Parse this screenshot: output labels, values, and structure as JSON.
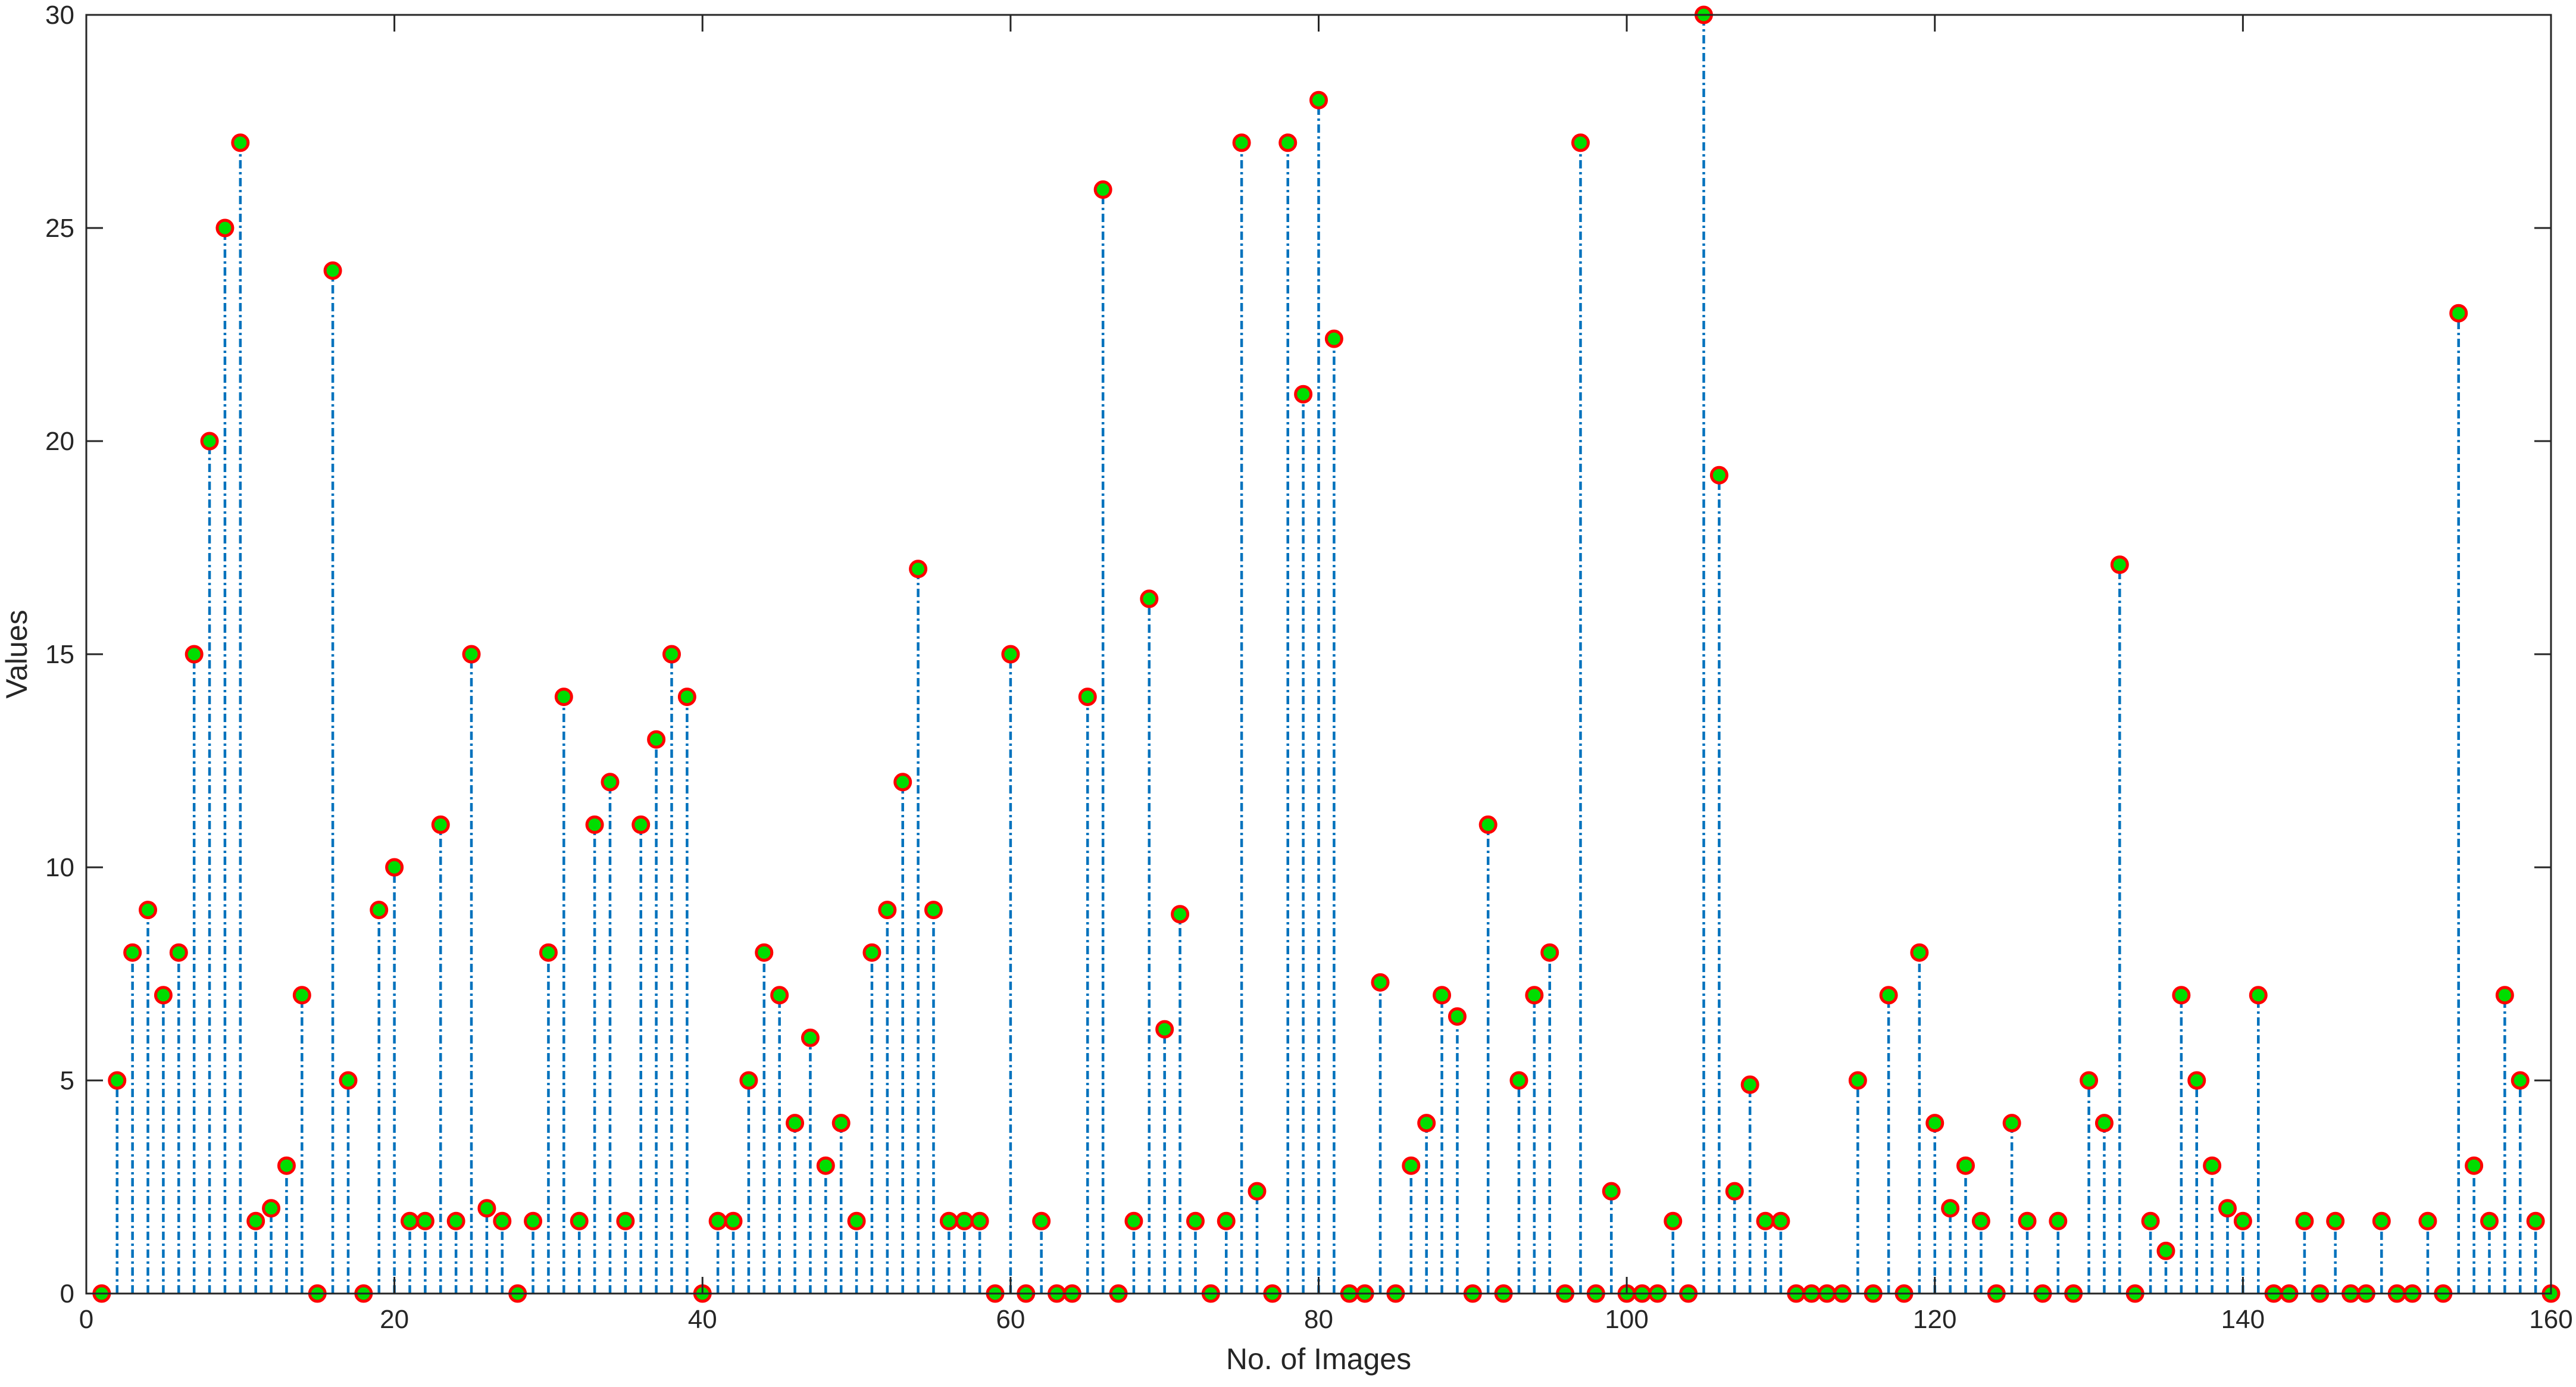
{
  "chart_data": {
    "type": "stem",
    "xlabel": "No. of Images",
    "ylabel": "Values",
    "xlim": [
      0,
      160
    ],
    "ylim": [
      0,
      30
    ],
    "xticks": [
      0,
      20,
      40,
      60,
      80,
      100,
      120,
      140,
      160
    ],
    "yticks": [
      0,
      5,
      10,
      15,
      20,
      25,
      30
    ],
    "grid": false,
    "box": true,
    "stem_color": "#0072BD",
    "marker_fill": "#00DD00",
    "marker_edge": "#FF0000",
    "axis_color": "#262626",
    "x": [
      1,
      2,
      3,
      4,
      5,
      6,
      7,
      8,
      9,
      10,
      11,
      12,
      13,
      14,
      15,
      16,
      17,
      18,
      19,
      20,
      21,
      22,
      23,
      24,
      25,
      26,
      27,
      28,
      29,
      30,
      31,
      32,
      33,
      34,
      35,
      36,
      37,
      38,
      39,
      40,
      41,
      42,
      43,
      44,
      45,
      46,
      47,
      48,
      49,
      50,
      51,
      52,
      53,
      54,
      55,
      56,
      57,
      58,
      59,
      60,
      61,
      62,
      63,
      64,
      65,
      66,
      67,
      68,
      69,
      70,
      71,
      72,
      73,
      74,
      75,
      76,
      77,
      78,
      79,
      80,
      81,
      82,
      83,
      84,
      85,
      86,
      87,
      88,
      89,
      90,
      91,
      92,
      93,
      94,
      95,
      96,
      97,
      98,
      99,
      100,
      101,
      102,
      103,
      104,
      105,
      106,
      107,
      108,
      109,
      110,
      111,
      112,
      113,
      114,
      115,
      116,
      117,
      118,
      119,
      120,
      121,
      122,
      123,
      124,
      125,
      126,
      127,
      128,
      129,
      130,
      131,
      132,
      133,
      134,
      135,
      136,
      137,
      138,
      139,
      140,
      141,
      142,
      143,
      144,
      145,
      146,
      147,
      148,
      149,
      150,
      151,
      152,
      153,
      154,
      155,
      156,
      157,
      158,
      159,
      160
    ],
    "values": [
      0,
      5,
      8,
      9,
      7,
      8,
      15,
      20,
      25,
      27,
      1.7,
      2,
      3,
      7,
      0,
      24,
      5,
      0,
      9,
      10,
      1.7,
      1.7,
      11,
      1.7,
      15,
      2,
      1.7,
      0,
      1.7,
      8,
      14,
      1.7,
      11,
      12,
      1.7,
      11,
      13,
      15,
      14,
      0,
      1.7,
      1.7,
      5,
      8,
      7,
      4,
      6,
      3,
      4,
      1.7,
      8,
      9,
      12,
      17,
      9,
      1.7,
      1.7,
      1.7,
      0,
      15,
      0,
      1.7,
      0,
      0,
      14,
      25.9,
      0,
      1.7,
      16.3,
      6.2,
      8.9,
      1.7,
      0,
      1.7,
      27,
      2.4,
      0,
      27,
      21.1,
      28,
      22.4,
      0,
      0,
      7.3,
      0,
      3,
      4,
      7,
      6.5,
      0,
      11,
      0,
      5,
      7,
      8,
      0,
      27,
      0,
      2.4,
      0,
      0,
      0,
      1.7,
      0,
      30,
      19.2,
      2.4,
      4.9,
      1.7,
      1.7,
      0,
      0,
      0,
      0,
      5,
      0,
      7,
      0,
      8,
      4,
      2,
      3,
      1.7,
      0,
      4,
      1.7,
      0,
      1.7,
      0,
      5,
      4,
      17.1,
      0,
      1.7,
      1,
      7,
      5,
      3,
      2,
      1.7,
      7,
      0,
      0,
      1.7,
      0,
      1.7,
      0,
      0,
      1.7,
      0,
      0,
      1.7,
      0,
      23,
      3,
      1.7,
      7,
      5,
      1.7,
      0
    ]
  }
}
